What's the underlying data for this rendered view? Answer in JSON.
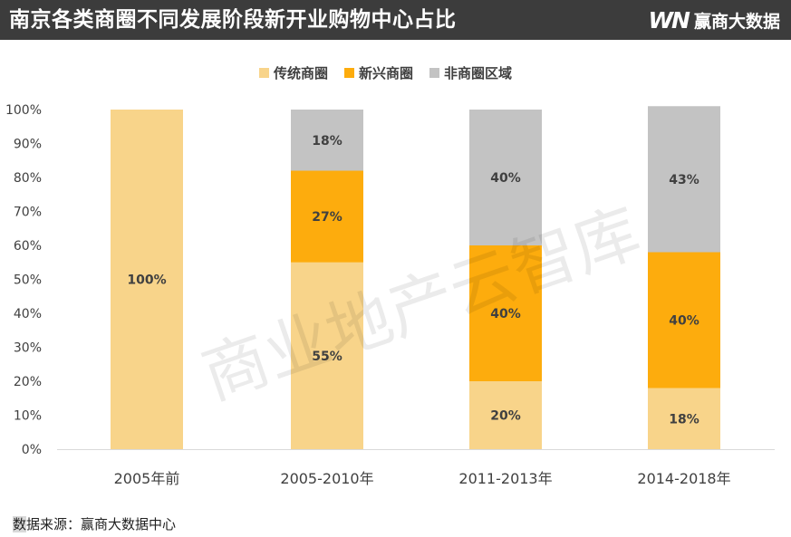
{
  "header": {
    "title": "南京各类商圈不同发展阶段新开业购物中心占比",
    "brand_logo": "WN",
    "brand_name": "赢商大数据"
  },
  "watermark": "商业地产云智库",
  "source": {
    "highlight": "数",
    "rest": "据来源：赢商大数据中心"
  },
  "colors": {
    "traditional": "#f8d48a",
    "emerging": "#fdac0d",
    "non": "#c3c3c3",
    "header_bg": "#3c3c3c"
  },
  "chart_data": {
    "type": "bar",
    "stacked": true,
    "title": "",
    "xlabel": "",
    "ylabel": "",
    "categories": [
      "2005年前",
      "2005-2010年",
      "2011-2013年",
      "2014-2018年"
    ],
    "ylim": [
      0,
      100
    ],
    "yticks": [
      "0%",
      "10%",
      "20%",
      "30%",
      "40%",
      "50%",
      "60%",
      "70%",
      "80%",
      "90%",
      "100%"
    ],
    "legend_position": "top-center",
    "grid": false,
    "series": [
      {
        "name": "传统商圈",
        "values": [
          100,
          55,
          20,
          18
        ],
        "labels": [
          "100%",
          "55%",
          "20%",
          "18%"
        ]
      },
      {
        "name": "新兴商圈",
        "values": [
          0,
          27,
          40,
          40
        ],
        "labels": [
          "",
          "27%",
          "40%",
          "40%"
        ]
      },
      {
        "name": "非商圈区域",
        "values": [
          0,
          18,
          40,
          43
        ],
        "labels": [
          "",
          "18%",
          "40%",
          "43%"
        ]
      }
    ]
  }
}
